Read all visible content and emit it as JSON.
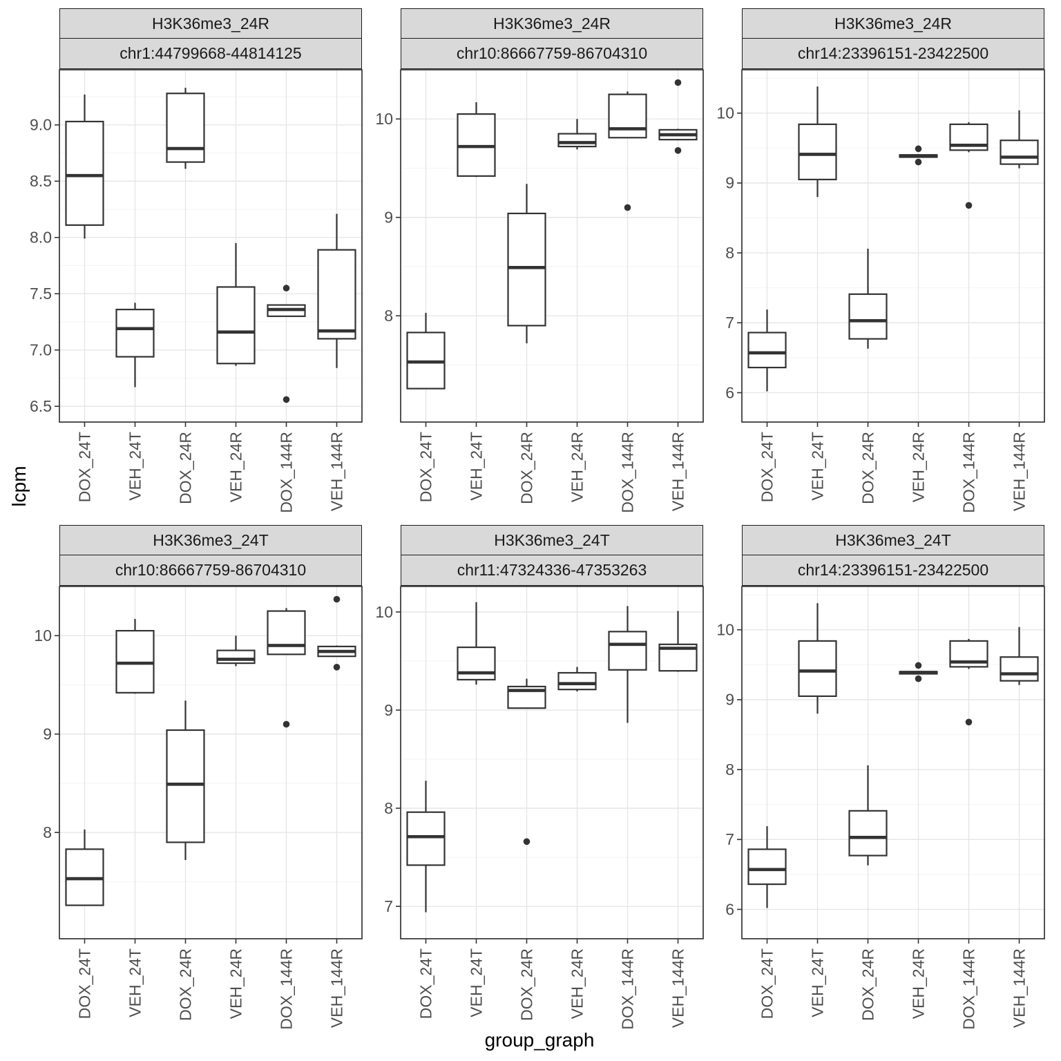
{
  "figure": {
    "ylab": "lcpm",
    "xlab": "group_graph",
    "categories": [
      "DOX_24T",
      "VEH_24T",
      "DOX_24R",
      "VEH_24R",
      "DOX_144R",
      "VEH_144R"
    ],
    "colors": {
      "strip_fill": "#d9d9d9",
      "panel_border": "#333333",
      "box_stroke": "#333333",
      "grid_major": "#e4e4e4",
      "grid_minor": "#f2f2f2",
      "tick_label": "#4d4d4d"
    }
  },
  "chart_data": [
    {
      "type": "boxplot",
      "strip1": "H3K36me3_24R",
      "strip2": "chr1:44799668-44814125",
      "ylim": [
        6.36,
        9.49
      ],
      "yticks": [
        6.5,
        7.0,
        7.5,
        8.0,
        8.5,
        9.0
      ],
      "ytick_labels": [
        "6.5",
        "7.0",
        "7.5",
        "8.0",
        "8.5",
        "9.0"
      ],
      "groups": [
        {
          "label": "DOX_24T",
          "low": 7.99,
          "q1": 8.11,
          "median": 8.55,
          "q3": 9.03,
          "high": 9.27,
          "outliers": []
        },
        {
          "label": "VEH_24T",
          "low": 6.67,
          "q1": 6.94,
          "median": 7.19,
          "q3": 7.36,
          "high": 7.42,
          "outliers": []
        },
        {
          "label": "DOX_24R",
          "low": 8.61,
          "q1": 8.67,
          "median": 8.79,
          "q3": 9.28,
          "high": 9.33,
          "outliers": []
        },
        {
          "label": "VEH_24R",
          "low": 6.86,
          "q1": 6.88,
          "median": 7.16,
          "q3": 7.56,
          "high": 7.95,
          "outliers": []
        },
        {
          "label": "DOX_144R",
          "low": 7.3,
          "q1": 7.3,
          "median": 7.36,
          "q3": 7.4,
          "high": 7.4,
          "outliers": [
            7.55,
            6.56
          ]
        },
        {
          "label": "VEH_144R",
          "low": 6.84,
          "q1": 7.1,
          "median": 7.17,
          "q3": 7.89,
          "high": 8.21,
          "outliers": []
        }
      ]
    },
    {
      "type": "boxplot",
      "strip1": "H3K36me3_24R",
      "strip2": "chr10:86667759-86704310",
      "ylim": [
        6.92,
        10.5
      ],
      "yticks": [
        8,
        9,
        10
      ],
      "ytick_labels": [
        "8",
        "9",
        "10"
      ],
      "groups": [
        {
          "label": "DOX_24T",
          "low": 7.26,
          "q1": 7.26,
          "median": 7.53,
          "q3": 7.83,
          "high": 8.03,
          "outliers": []
        },
        {
          "label": "VEH_24T",
          "low": 9.41,
          "q1": 9.42,
          "median": 9.72,
          "q3": 10.05,
          "high": 10.17,
          "outliers": []
        },
        {
          "label": "DOX_24R",
          "low": 7.72,
          "q1": 7.9,
          "median": 8.49,
          "q3": 9.04,
          "high": 9.34,
          "outliers": []
        },
        {
          "label": "VEH_24R",
          "low": 9.69,
          "q1": 9.72,
          "median": 9.76,
          "q3": 9.85,
          "high": 10.0,
          "outliers": []
        },
        {
          "label": "DOX_144R",
          "low": 9.81,
          "q1": 9.81,
          "median": 9.9,
          "q3": 10.25,
          "high": 10.28,
          "outliers": [
            9.1
          ]
        },
        {
          "label": "VEH_144R",
          "low": 9.79,
          "q1": 9.79,
          "median": 9.84,
          "q3": 9.89,
          "high": 9.9,
          "outliers": [
            10.37,
            9.68
          ]
        }
      ]
    },
    {
      "type": "boxplot",
      "strip1": "H3K36me3_24R",
      "strip2": "chr14:23396151-23422500",
      "ylim": [
        5.58,
        10.62
      ],
      "yticks": [
        6,
        7,
        8,
        9,
        10
      ],
      "ytick_labels": [
        "6",
        "7",
        "8",
        "9",
        "10"
      ],
      "groups": [
        {
          "label": "DOX_24T",
          "low": 6.02,
          "q1": 6.36,
          "median": 6.57,
          "q3": 6.86,
          "high": 7.19,
          "outliers": []
        },
        {
          "label": "VEH_24T",
          "low": 8.8,
          "q1": 9.05,
          "median": 9.41,
          "q3": 9.84,
          "high": 10.38,
          "outliers": []
        },
        {
          "label": "DOX_24R",
          "low": 6.63,
          "q1": 6.77,
          "median": 7.03,
          "q3": 7.41,
          "high": 8.06,
          "outliers": []
        },
        {
          "label": "VEH_24R",
          "low": 9.36,
          "q1": 9.37,
          "median": 9.39,
          "q3": 9.4,
          "high": 9.41,
          "outliers": [
            9.49,
            9.3
          ]
        },
        {
          "label": "DOX_144R",
          "low": 9.44,
          "q1": 9.47,
          "median": 9.54,
          "q3": 9.84,
          "high": 9.87,
          "outliers": [
            8.68
          ]
        },
        {
          "label": "VEH_144R",
          "low": 9.21,
          "q1": 9.27,
          "median": 9.37,
          "q3": 9.61,
          "high": 10.04,
          "outliers": []
        }
      ]
    },
    {
      "type": "boxplot",
      "strip1": "H3K36me3_24T",
      "strip2": "chr10:86667759-86704310",
      "ylim": [
        6.92,
        10.5
      ],
      "yticks": [
        8,
        9,
        10
      ],
      "ytick_labels": [
        "8",
        "9",
        "10"
      ],
      "groups": [
        {
          "label": "DOX_24T",
          "low": 7.26,
          "q1": 7.26,
          "median": 7.53,
          "q3": 7.83,
          "high": 8.03,
          "outliers": []
        },
        {
          "label": "VEH_24T",
          "low": 9.41,
          "q1": 9.42,
          "median": 9.72,
          "q3": 10.05,
          "high": 10.17,
          "outliers": []
        },
        {
          "label": "DOX_24R",
          "low": 7.72,
          "q1": 7.9,
          "median": 8.49,
          "q3": 9.04,
          "high": 9.34,
          "outliers": []
        },
        {
          "label": "VEH_24R",
          "low": 9.69,
          "q1": 9.72,
          "median": 9.76,
          "q3": 9.85,
          "high": 10.0,
          "outliers": []
        },
        {
          "label": "DOX_144R",
          "low": 9.81,
          "q1": 9.81,
          "median": 9.9,
          "q3": 10.25,
          "high": 10.28,
          "outliers": [
            9.1
          ]
        },
        {
          "label": "VEH_144R",
          "low": 9.79,
          "q1": 9.79,
          "median": 9.84,
          "q3": 9.89,
          "high": 9.9,
          "outliers": [
            10.37,
            9.68
          ]
        }
      ]
    },
    {
      "type": "boxplot",
      "strip1": "H3K36me3_24T",
      "strip2": "chr11:47324336-47353263",
      "ylim": [
        6.67,
        10.26
      ],
      "yticks": [
        7,
        8,
        9,
        10
      ],
      "ytick_labels": [
        "7",
        "8",
        "9",
        "10"
      ],
      "groups": [
        {
          "label": "DOX_24T",
          "low": 6.94,
          "q1": 7.42,
          "median": 7.71,
          "q3": 7.96,
          "high": 8.28,
          "outliers": []
        },
        {
          "label": "VEH_24T",
          "low": 9.26,
          "q1": 9.31,
          "median": 9.38,
          "q3": 9.64,
          "high": 10.1,
          "outliers": []
        },
        {
          "label": "DOX_24R",
          "low": 9.02,
          "q1": 9.02,
          "median": 9.2,
          "q3": 9.24,
          "high": 9.32,
          "outliers": [
            7.66
          ]
        },
        {
          "label": "VEH_24R",
          "low": 9.19,
          "q1": 9.21,
          "median": 9.27,
          "q3": 9.38,
          "high": 9.44,
          "outliers": []
        },
        {
          "label": "DOX_144R",
          "low": 8.87,
          "q1": 9.41,
          "median": 9.67,
          "q3": 9.8,
          "high": 10.06,
          "outliers": []
        },
        {
          "label": "VEH_144R",
          "low": 9.39,
          "q1": 9.4,
          "median": 9.63,
          "q3": 9.67,
          "high": 10.01,
          "outliers": []
        }
      ]
    },
    {
      "type": "boxplot",
      "strip1": "H3K36me3_24T",
      "strip2": "chr14:23396151-23422500",
      "ylim": [
        5.58,
        10.62
      ],
      "yticks": [
        6,
        7,
        8,
        9,
        10
      ],
      "ytick_labels": [
        "6",
        "7",
        "8",
        "9",
        "10"
      ],
      "groups": [
        {
          "label": "DOX_24T",
          "low": 6.02,
          "q1": 6.36,
          "median": 6.57,
          "q3": 6.86,
          "high": 7.19,
          "outliers": []
        },
        {
          "label": "VEH_24T",
          "low": 8.8,
          "q1": 9.05,
          "median": 9.41,
          "q3": 9.84,
          "high": 10.38,
          "outliers": []
        },
        {
          "label": "DOX_24R",
          "low": 6.63,
          "q1": 6.77,
          "median": 7.03,
          "q3": 7.41,
          "high": 8.06,
          "outliers": []
        },
        {
          "label": "VEH_24R",
          "low": 9.36,
          "q1": 9.37,
          "median": 9.39,
          "q3": 9.4,
          "high": 9.41,
          "outliers": [
            9.49,
            9.3
          ]
        },
        {
          "label": "DOX_144R",
          "low": 9.44,
          "q1": 9.47,
          "median": 9.54,
          "q3": 9.84,
          "high": 9.87,
          "outliers": [
            8.68
          ]
        },
        {
          "label": "VEH_144R",
          "low": 9.21,
          "q1": 9.27,
          "median": 9.37,
          "q3": 9.61,
          "high": 10.04,
          "outliers": []
        }
      ]
    }
  ]
}
